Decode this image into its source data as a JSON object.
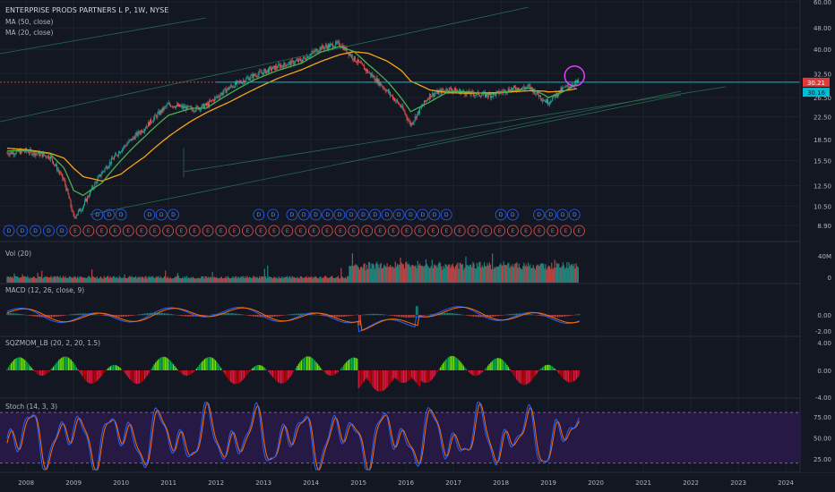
{
  "header": {
    "title": "ENTERPRISE PRODS PARTNERS L P, 1W, NYSE",
    "ma50": "MA (50, close)",
    "ma20": "MA (20, close)"
  },
  "colors": {
    "bg": "#131722",
    "grid": "#1e222d",
    "candle_up": "#26a69a",
    "candle_down": "#ef5350",
    "ma50": "#f7a21b",
    "ma20": "#4caf50",
    "resistance": "#00bcd4",
    "red_dotted": "#e53935",
    "channel": "#2e7d5b",
    "circle": "#e040fb",
    "macd": "#2962ff",
    "signal": "#ff6d00",
    "stoch_k": "#2962ff",
    "stoch_d": "#ff6d00",
    "stoch_band": "#2a1a4a"
  },
  "chart_data": [
    {
      "type": "line",
      "name": "price",
      "x": [
        2007.6,
        2008.0,
        2008.5,
        2008.8,
        2009.0,
        2009.2,
        2009.6,
        2010.0,
        2010.5,
        2011.0,
        2011.5,
        2011.8,
        2012.3,
        2012.8,
        2013.3,
        2013.8,
        2014.2,
        2014.6,
        2014.9,
        2015.2,
        2015.6,
        2015.9,
        2016.1,
        2016.5,
        2016.9,
        2017.3,
        2017.8,
        2018.2,
        2018.6,
        2018.9,
        2019.0,
        2019.3,
        2019.6
      ],
      "y": [
        16.5,
        16.8,
        16.0,
        13.0,
        9.5,
        10.5,
        14.0,
        17.0,
        20.5,
        25.0,
        24.0,
        24.8,
        29.0,
        32.0,
        34.5,
        36.5,
        40.5,
        42.0,
        37.0,
        33.0,
        28.0,
        24.5,
        21.0,
        27.0,
        28.5,
        27.5,
        27.0,
        28.5,
        29.0,
        26.0,
        25.5,
        28.5,
        30.2
      ],
      "ma50": [
        17.2,
        17.0,
        16.5,
        15.8,
        14.5,
        13.5,
        13.0,
        13.8,
        16.0,
        19.0,
        21.8,
        23.3,
        25.6,
        28.4,
        31.2,
        33.6,
        36.0,
        38.2,
        39.2,
        38.7,
        36.2,
        33.4,
        30.5,
        28.3,
        27.6,
        27.5,
        27.6,
        27.8,
        28.1,
        28.0,
        27.8,
        28.0,
        28.6
      ],
      "ma20": [
        16.8,
        16.9,
        16.4,
        14.5,
        12.0,
        11.5,
        12.8,
        15.5,
        19.0,
        22.8,
        24.2,
        24.2,
        27.5,
        30.8,
        33.4,
        35.5,
        39.0,
        41.0,
        39.3,
        35.2,
        30.5,
        26.4,
        23.5,
        25.5,
        27.9,
        27.8,
        27.3,
        28.0,
        28.7,
        27.2,
        26.5,
        27.8,
        29.6
      ],
      "yscale": "log",
      "ylim": [
        8.0,
        60.0
      ],
      "y_ticks": [
        "60.00",
        "48.00",
        "40.00",
        "32.50",
        "26.50",
        "22.50",
        "18.50",
        "15.50",
        "12.50",
        "10.50",
        "8.90"
      ],
      "current_price": "30.21",
      "ma_value": "30.16",
      "resistance_level": 30.21,
      "events_top": "D",
      "events_bottom_D": "D",
      "events_bottom_E": "E"
    },
    {
      "type": "bar",
      "name": "Vol (20)",
      "y_ticks": [
        "40M",
        "0"
      ]
    },
    {
      "type": "line",
      "name": "MACD (12, 26, close, 9)",
      "y_ticks": [
        "0.00",
        "-2.00"
      ],
      "ylim": [
        -2.2,
        1.6
      ]
    },
    {
      "type": "bar",
      "name": "SQZMOM_LB (20, 2, 20, 1.5)",
      "y_ticks": [
        "4.00",
        "0.00",
        "-4.00"
      ],
      "ylim": [
        -4.3,
        4.3
      ]
    },
    {
      "type": "line",
      "name": "Stoch (14, 3, 3)",
      "y_ticks": [
        "75.00",
        "50.00",
        "25.00"
      ],
      "ylim": [
        10,
        95
      ],
      "bands": [
        20,
        80
      ]
    }
  ],
  "x_axis": {
    "labels": [
      "2008",
      "2009",
      "2010",
      "2011",
      "2012",
      "2013",
      "2014",
      "2015",
      "2016",
      "2017",
      "2018",
      "2019",
      "2020",
      "2021",
      "2022",
      "2023",
      "2024"
    ],
    "range": [
      2007.45,
      2024.3
    ]
  },
  "panes": {
    "vol_title": "Vol (20)",
    "macd_title": "MACD (12, 26, close, 9)",
    "sqz_title": "SQZMOM_LB (20, 2, 20, 1.5)",
    "stoch_title": "Stoch (14, 3, 3)"
  }
}
